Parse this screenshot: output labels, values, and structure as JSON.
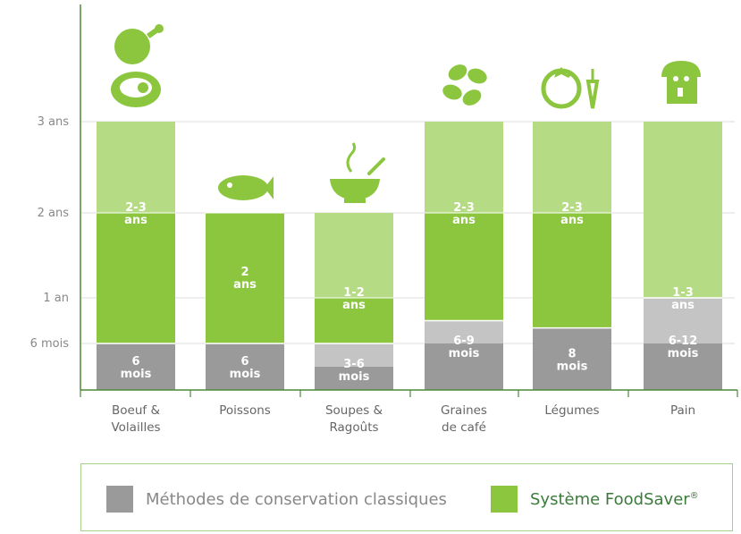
{
  "chart_data": {
    "type": "bar",
    "y_ticks": [
      "3 ans",
      "2 ans",
      "1 an",
      "6 mois"
    ],
    "categories": [
      "Boeuf & Volailles",
      "Poissons",
      "Soupes & Ragoûts",
      "Graines de café",
      "Légumes",
      "Pain"
    ],
    "unit": "years",
    "series": [
      {
        "name": "Méthodes de conservation classiques",
        "values_low": [
          0.5,
          0.5,
          0.25,
          0.5,
          0.67,
          0.5
        ],
        "values_high": [
          0.5,
          0.5,
          0.5,
          0.75,
          0.67,
          1.0
        ],
        "labels": [
          "6 mois",
          "6 mois",
          "3-6 mois",
          "6-9 mois",
          "8 mois",
          "6-12 mois"
        ]
      },
      {
        "name": "Système FoodSaver®",
        "values_low": [
          2,
          2,
          1,
          2,
          2,
          1
        ],
        "values_high": [
          3,
          2,
          2,
          3,
          3,
          3
        ],
        "labels": [
          "2-3 ans",
          "2 ans",
          "1-2 ans",
          "2-3 ans",
          "2-3 ans",
          "1-3 ans"
        ]
      }
    ],
    "ylim": [
      0,
      3
    ],
    "grid": true
  },
  "legend": {
    "classic": "Méthodes de conservation classiques",
    "foodsaver": "Système FoodSaver",
    "foodsaver_mark": "®"
  },
  "icons": [
    "meat-icon",
    "fish-icon",
    "soup-icon",
    "coffee-beans-icon",
    "vegetables-icon",
    "bread-icon"
  ],
  "colors": {
    "classic_dark": "#9a9a9a",
    "classic_light": "#c4c4c4",
    "green_dark": "#8cc63f",
    "green_light": "#b5db85",
    "icon_green": "#8cc63f",
    "axis": "#4d8a3a",
    "foodsaver_text": "#3b7a3b"
  }
}
